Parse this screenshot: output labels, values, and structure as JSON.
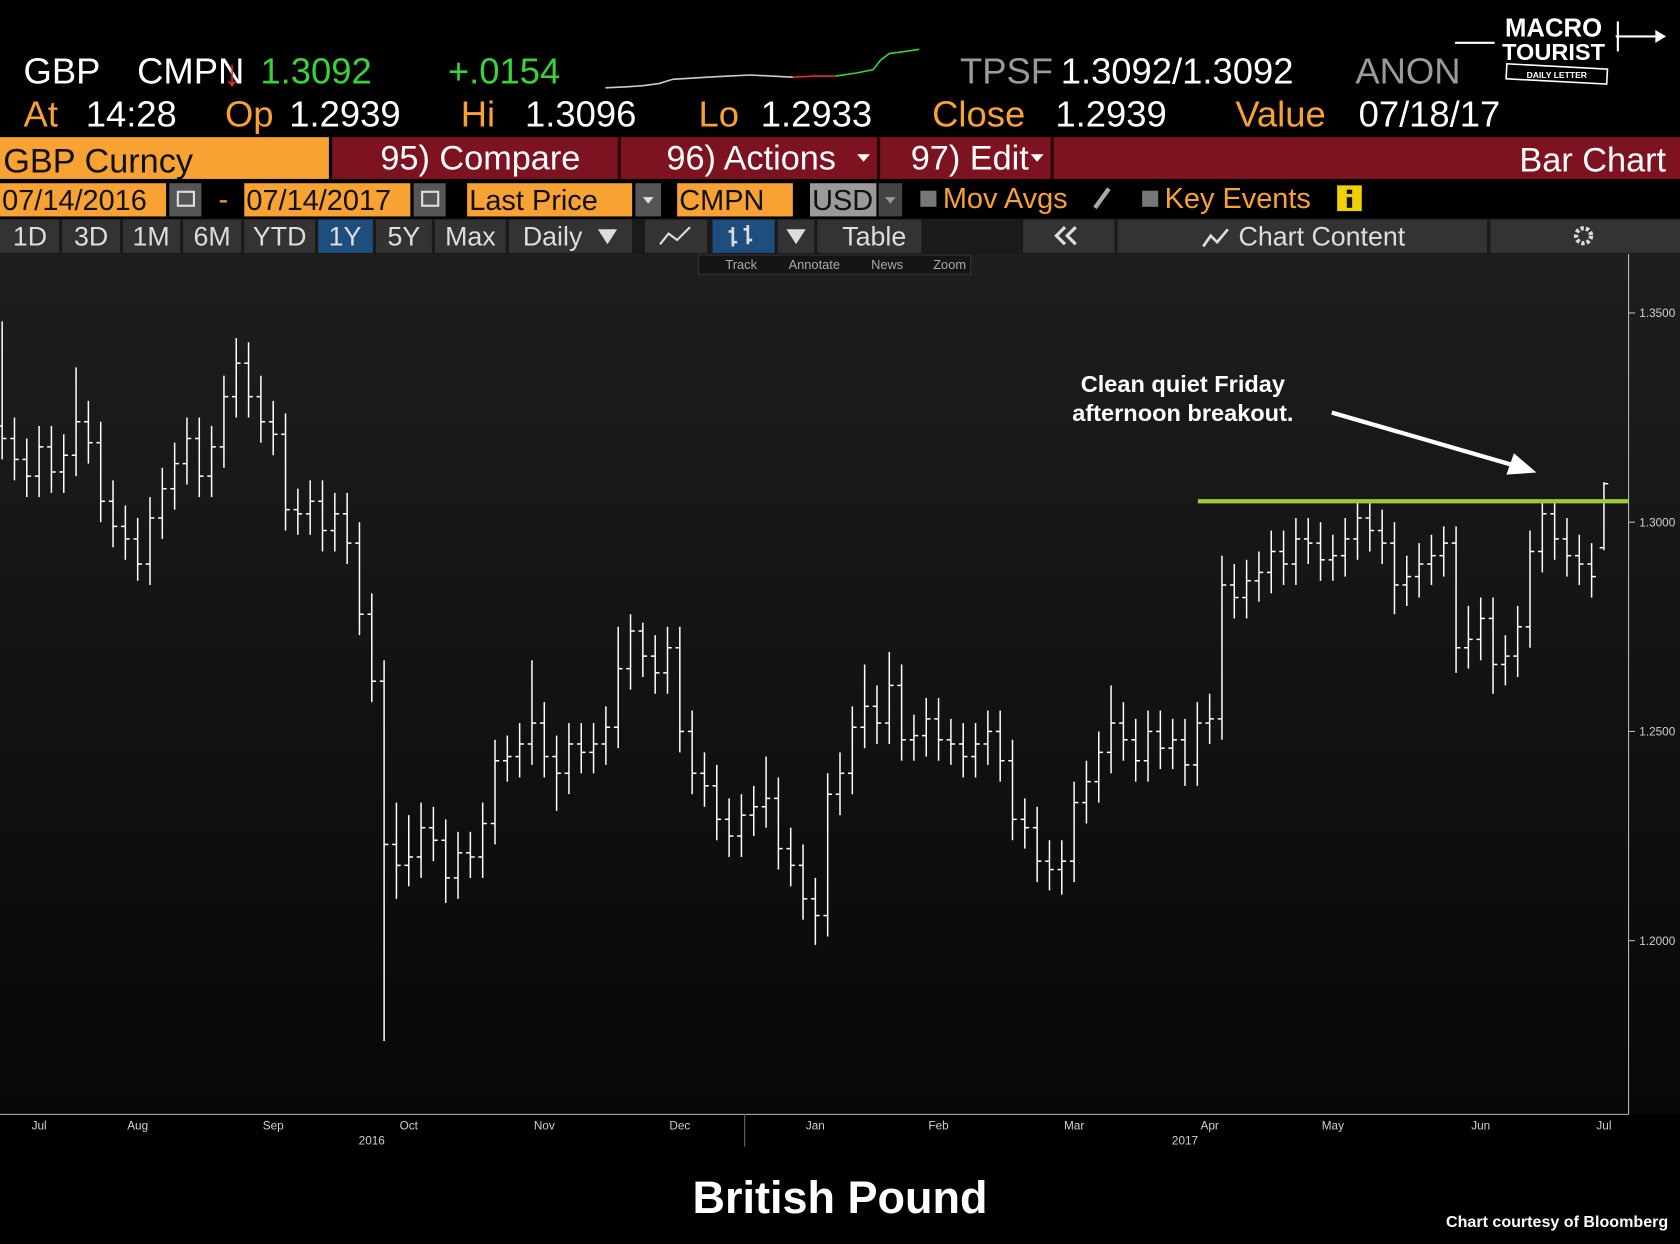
{
  "header": {
    "ticker": "GBP",
    "source": "CMPN",
    "direction": "↓",
    "last": "1.3092",
    "change": "+.0154",
    "pricing_source": "TPSF",
    "bid_ask": "1.3092/1.3092",
    "ask_source": "ANON",
    "row2": [
      {
        "label": "At",
        "value": "14:28"
      },
      {
        "label": "Op",
        "value": "1.2939"
      },
      {
        "label": "Hi",
        "value": "1.3096"
      },
      {
        "label": "Lo",
        "value": "1.2933"
      },
      {
        "label": "Close",
        "value": "1.2939"
      },
      {
        "label": "Value",
        "value": "07/18/17"
      }
    ]
  },
  "logo": {
    "line1": "MACRO",
    "line2": "TOURIST",
    "line3": "DAILY LETTER"
  },
  "toolbar": {
    "security": "GBP Curncy",
    "compare": "95) Compare",
    "actions": "96) Actions",
    "edit": "97) Edit",
    "chart_kind": "Bar Chart",
    "start_date": "07/14/2016",
    "dash": "-",
    "end_date": "07/14/2017",
    "field": "Last Price",
    "source": "CMPN",
    "currency": "USD",
    "mov_avgs": "Mov Avgs",
    "key_events": "Key Events",
    "periods": [
      "1D",
      "3D",
      "1M",
      "6M",
      "YTD",
      "1Y",
      "5Y",
      "Max"
    ],
    "frequency": "Daily",
    "table": "Table",
    "chart_content": "Chart Content",
    "tools": [
      "Track",
      "Annotate",
      "News",
      "Zoom"
    ]
  },
  "chart_data": {
    "type": "ohlc",
    "color": "#ffffff",
    "categories": [
      null,
      null,
      null,
      "Jul",
      null,
      null,
      null,
      null,
      null,
      null,
      null,
      "Aug",
      null,
      null,
      null,
      null,
      null,
      null,
      null,
      null,
      null,
      null,
      "Sep",
      null,
      null,
      null,
      null,
      null,
      null,
      null,
      null,
      null,
      null,
      "Oct",
      null,
      null,
      null,
      null,
      null,
      null,
      null,
      null,
      null,
      null,
      "Nov",
      null,
      null,
      null,
      null,
      null,
      null,
      null,
      null,
      null,
      null,
      "Dec",
      null,
      null,
      null,
      null,
      null,
      null,
      null,
      null,
      null,
      null,
      "Jan",
      null,
      null,
      null,
      null,
      null,
      null,
      null,
      null,
      null,
      "Feb",
      null,
      null,
      null,
      null,
      null,
      null,
      null,
      null,
      null,
      null,
      "Mar",
      null,
      null,
      null,
      null,
      null,
      null,
      null,
      null,
      null,
      null,
      "Apr",
      null,
      null,
      null,
      null,
      null,
      null,
      null,
      null,
      null,
      "May",
      null,
      null,
      null,
      null,
      null,
      null,
      null,
      null,
      null,
      null,
      null,
      "Jun",
      null,
      null,
      null,
      null,
      null,
      null,
      null,
      null,
      null,
      "Jul"
    ],
    "year_categories": [
      null,
      null,
      null,
      null,
      null,
      null,
      null,
      null,
      null,
      null,
      null,
      null,
      null,
      null,
      null,
      null,
      null,
      null,
      null,
      null,
      null,
      null,
      null,
      null,
      null,
      null,
      null,
      null,
      null,
      null,
      "2016",
      null,
      null,
      null,
      null,
      null,
      null,
      null,
      null,
      null,
      null,
      null,
      null,
      null,
      null,
      null,
      null,
      null,
      null,
      null,
      null,
      null,
      null,
      null,
      null,
      null,
      null,
      null,
      null,
      null,
      null,
      null,
      null,
      null,
      null,
      null,
      null,
      null,
      null,
      null,
      null,
      null,
      null,
      null,
      null,
      null,
      null,
      null,
      null,
      null,
      null,
      null,
      null,
      null,
      null,
      null,
      null,
      null,
      null,
      null,
      null,
      null,
      null,
      null,
      null,
      null,
      "2017",
      null,
      null,
      null,
      null,
      null,
      null,
      null,
      null,
      null,
      null,
      null,
      null,
      null,
      null,
      null,
      null,
      null,
      null,
      null,
      null,
      null,
      null,
      null,
      null,
      null,
      null,
      null,
      null,
      null,
      null,
      null,
      null,
      null
    ],
    "open": [
      1.323,
      1.32,
      1.315,
      1.311,
      1.318,
      1.312,
      1.316,
      1.324,
      1.319,
      1.305,
      1.299,
      1.296,
      1.29,
      1.301,
      1.308,
      1.314,
      1.32,
      1.311,
      1.318,
      1.33,
      1.338,
      1.33,
      1.324,
      1.321,
      1.303,
      1.302,
      1.305,
      1.298,
      1.302,
      1.295,
      1.278,
      1.262,
      1.223,
      1.218,
      1.22,
      1.227,
      1.224,
      1.215,
      1.221,
      1.22,
      1.228,
      1.243,
      1.244,
      1.247,
      1.252,
      1.244,
      1.24,
      1.247,
      1.245,
      1.247,
      1.251,
      1.265,
      1.274,
      1.268,
      1.264,
      1.27,
      1.25,
      1.24,
      1.237,
      1.229,
      1.225,
      1.23,
      1.232,
      1.234,
      1.222,
      1.218,
      1.21,
      1.206,
      1.235,
      1.24,
      1.251,
      1.256,
      1.252,
      1.261,
      1.248,
      1.249,
      1.253,
      1.248,
      1.247,
      1.244,
      1.247,
      1.25,
      1.243,
      1.229,
      1.227,
      1.219,
      1.217,
      1.219,
      1.233,
      1.238,
      1.245,
      1.252,
      1.248,
      1.243,
      1.25,
      1.246,
      1.248,
      1.242,
      1.252,
      1.253,
      1.285,
      1.282,
      1.286,
      1.288,
      1.293,
      1.29,
      1.296,
      1.295,
      1.291,
      1.292,
      1.296,
      1.301,
      1.298,
      1.295,
      1.285,
      1.287,
      1.29,
      1.292,
      1.295,
      1.27,
      1.272,
      1.277,
      1.266,
      1.268,
      1.275,
      1.293,
      1.302,
      1.296,
      1.292,
      1.29,
      1.2939
    ],
    "high": [
      1.348,
      1.325,
      1.32,
      1.323,
      1.323,
      1.321,
      1.337,
      1.329,
      1.324,
      1.31,
      1.304,
      1.301,
      1.306,
      1.313,
      1.319,
      1.325,
      1.325,
      1.323,
      1.335,
      1.344,
      1.343,
      1.335,
      1.329,
      1.326,
      1.308,
      1.31,
      1.31,
      1.307,
      1.307,
      1.3,
      1.283,
      1.267,
      1.233,
      1.23,
      1.233,
      1.232,
      1.229,
      1.226,
      1.226,
      1.233,
      1.248,
      1.249,
      1.252,
      1.267,
      1.257,
      1.249,
      1.252,
      1.252,
      1.252,
      1.256,
      1.275,
      1.278,
      1.276,
      1.273,
      1.275,
      1.275,
      1.255,
      1.245,
      1.242,
      1.234,
      1.235,
      1.237,
      1.244,
      1.239,
      1.227,
      1.223,
      1.215,
      1.24,
      1.245,
      1.256,
      1.266,
      1.261,
      1.269,
      1.266,
      1.254,
      1.258,
      1.258,
      1.253,
      1.252,
      1.252,
      1.255,
      1.255,
      1.248,
      1.234,
      1.232,
      1.224,
      1.224,
      1.238,
      1.243,
      1.25,
      1.261,
      1.257,
      1.253,
      1.255,
      1.255,
      1.253,
      1.253,
      1.257,
      1.259,
      1.292,
      1.29,
      1.291,
      1.293,
      1.298,
      1.298,
      1.301,
      1.301,
      1.3,
      1.297,
      1.301,
      1.305,
      1.305,
      1.303,
      1.3,
      1.292,
      1.295,
      1.297,
      1.299,
      1.299,
      1.28,
      1.282,
      1.282,
      1.273,
      1.28,
      1.298,
      1.305,
      1.305,
      1.301,
      1.297,
      1.295,
      1.3096
    ],
    "low": [
      1.315,
      1.31,
      1.306,
      1.306,
      1.307,
      1.307,
      1.311,
      1.314,
      1.3,
      1.294,
      1.291,
      1.286,
      1.285,
      1.296,
      1.303,
      1.309,
      1.306,
      1.306,
      1.313,
      1.325,
      1.325,
      1.319,
      1.316,
      1.298,
      1.297,
      1.297,
      1.293,
      1.293,
      1.29,
      1.273,
      1.257,
      1.176,
      1.21,
      1.213,
      1.215,
      1.219,
      1.209,
      1.21,
      1.215,
      1.215,
      1.223,
      1.238,
      1.239,
      1.242,
      1.239,
      1.231,
      1.235,
      1.24,
      1.24,
      1.242,
      1.246,
      1.26,
      1.263,
      1.259,
      1.259,
      1.245,
      1.235,
      1.232,
      1.224,
      1.22,
      1.22,
      1.225,
      1.227,
      1.217,
      1.213,
      1.205,
      1.199,
      1.201,
      1.23,
      1.235,
      1.246,
      1.247,
      1.247,
      1.243,
      1.243,
      1.244,
      1.243,
      1.242,
      1.239,
      1.239,
      1.242,
      1.238,
      1.224,
      1.222,
      1.214,
      1.212,
      1.211,
      1.214,
      1.228,
      1.233,
      1.24,
      1.243,
      1.238,
      1.238,
      1.241,
      1.241,
      1.237,
      1.237,
      1.247,
      1.248,
      1.277,
      1.277,
      1.281,
      1.283,
      1.285,
      1.285,
      1.29,
      1.286,
      1.286,
      1.287,
      1.291,
      1.293,
      1.29,
      1.278,
      1.28,
      1.282,
      1.285,
      1.287,
      1.264,
      1.265,
      1.267,
      1.259,
      1.261,
      1.263,
      1.27,
      1.288,
      1.291,
      1.287,
      1.285,
      1.282,
      1.2933
    ],
    "close": [
      1.32,
      1.315,
      1.311,
      1.318,
      1.312,
      1.316,
      1.324,
      1.319,
      1.305,
      1.299,
      1.296,
      1.29,
      1.301,
      1.308,
      1.314,
      1.32,
      1.311,
      1.318,
      1.33,
      1.338,
      1.33,
      1.324,
      1.321,
      1.303,
      1.302,
      1.305,
      1.298,
      1.302,
      1.295,
      1.278,
      1.262,
      1.223,
      1.218,
      1.22,
      1.227,
      1.224,
      1.215,
      1.221,
      1.22,
      1.228,
      1.243,
      1.244,
      1.247,
      1.252,
      1.244,
      1.24,
      1.247,
      1.245,
      1.247,
      1.251,
      1.265,
      1.274,
      1.268,
      1.264,
      1.27,
      1.25,
      1.24,
      1.237,
      1.229,
      1.225,
      1.23,
      1.232,
      1.234,
      1.222,
      1.218,
      1.21,
      1.206,
      1.235,
      1.24,
      1.251,
      1.256,
      1.252,
      1.261,
      1.248,
      1.249,
      1.253,
      1.248,
      1.247,
      1.244,
      1.247,
      1.25,
      1.243,
      1.229,
      1.227,
      1.219,
      1.217,
      1.219,
      1.233,
      1.238,
      1.245,
      1.252,
      1.248,
      1.243,
      1.25,
      1.246,
      1.248,
      1.242,
      1.252,
      1.253,
      1.285,
      1.282,
      1.286,
      1.288,
      1.293,
      1.29,
      1.296,
      1.295,
      1.291,
      1.292,
      1.296,
      1.301,
      1.298,
      1.295,
      1.285,
      1.287,
      1.29,
      1.292,
      1.295,
      1.27,
      1.272,
      1.277,
      1.266,
      1.268,
      1.275,
      1.293,
      1.302,
      1.296,
      1.292,
      1.29,
      1.287,
      1.3092
    ],
    "ylim": [
      1.1585,
      1.3641
    ],
    "yticks": [
      {
        "value": 1.2,
        "label": "1.2000"
      },
      {
        "value": 1.25,
        "label": "1.2500"
      },
      {
        "value": 1.3,
        "label": "1.3000"
      },
      {
        "value": 1.35,
        "label": "1.3500"
      }
    ],
    "level_line": {
      "value": 1.305,
      "color": "#9acd32"
    },
    "annotation": [
      "Clean quiet Friday",
      "afternoon breakout."
    ]
  },
  "footer": {
    "title": "British Pound",
    "credit": "Chart courtesy of Bloomberg"
  }
}
